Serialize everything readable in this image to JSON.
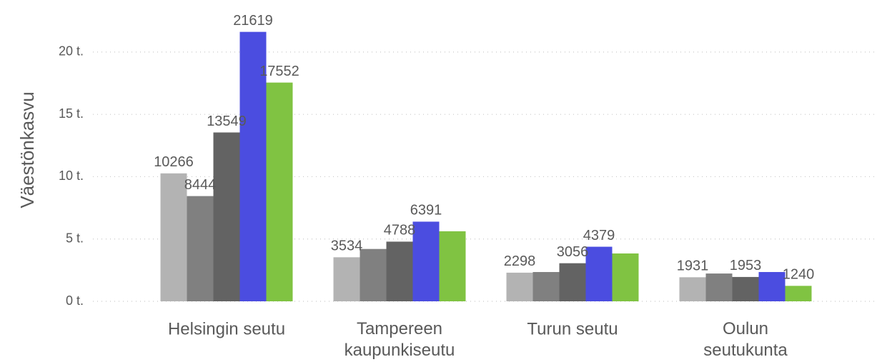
{
  "chart_data": {
    "type": "bar",
    "y_label": "Väestönkasvu",
    "categories": [
      "Helsingin seutu",
      "Tampereen kaupunkiseutu",
      "Turun seutu",
      "Oulun seutukunta"
    ],
    "series": [
      {
        "color": "#b3b3b3",
        "values": [
          10266,
          3534,
          2298,
          1931
        ],
        "value_labels": [
          "10266",
          "3534",
          "2298",
          "1931"
        ]
      },
      {
        "color": "#808080",
        "values": [
          8444,
          4200,
          2350,
          2230
        ],
        "value_labels": [
          "8444",
          null,
          null,
          null
        ]
      },
      {
        "color": "#636363",
        "values": [
          13549,
          4788,
          3056,
          1953
        ],
        "value_labels": [
          "13549",
          "4788",
          "3056",
          "1953"
        ]
      },
      {
        "color": "#4b4de0",
        "values": [
          21619,
          6391,
          4379,
          2350
        ],
        "value_labels": [
          "21619",
          "6391",
          "4379",
          null
        ]
      },
      {
        "color": "#80c342",
        "values": [
          17552,
          5620,
          3840,
          1240
        ],
        "value_labels": [
          "17552",
          null,
          null,
          "1240"
        ]
      }
    ],
    "ylim": [
      0,
      22000
    ],
    "yticks": [
      {
        "value": 0,
        "label": "0 t."
      },
      {
        "value": 5000,
        "label": "5 t."
      },
      {
        "value": 10000,
        "label": "10 t."
      },
      {
        "value": 15000,
        "label": "15 t."
      },
      {
        "value": 20000,
        "label": "20 t."
      }
    ],
    "grid": true
  }
}
